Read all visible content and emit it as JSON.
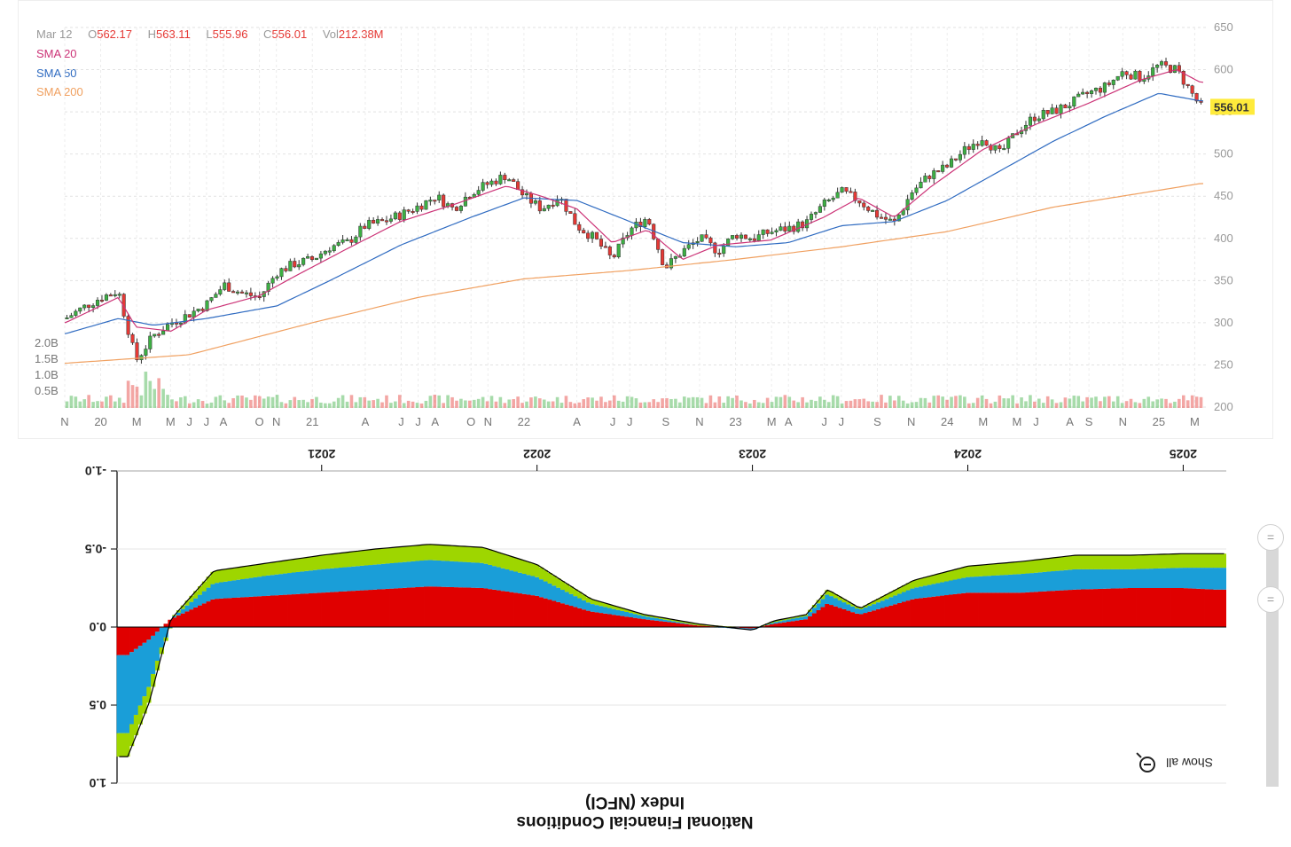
{
  "ohlc": {
    "date": "Mar 12",
    "open_label": "O",
    "open": "562.17",
    "high_label": "H",
    "high": "563.11",
    "low_label": "L",
    "low": "555.96",
    "close_label": "C",
    "close": "556.01",
    "vol_label": "Vol",
    "vol": "212.38M"
  },
  "legend": {
    "sma20": "SMA 20",
    "sma50": "SMA 50",
    "sma200": "SMA 200",
    "color_sma20": "#cc3377",
    "color_sma50": "#2f6bc1",
    "color_sma200": "#f0a060",
    "color_up": "#3cb043",
    "color_down": "#e53935"
  },
  "price_badge": "556.01",
  "nfci": {
    "title_line1": "National Financial Conditions",
    "title_line2": "Index (NFCI)",
    "show_all": "Show all",
    "colors": {
      "red": "#e00000",
      "blue": "#1a9ed8",
      "green": "#9ed600"
    }
  },
  "chart_data": [
    {
      "type": "candlestick",
      "title": "",
      "y_ticks": [
        "650",
        "600",
        "550",
        "500",
        "450",
        "400",
        "350",
        "300",
        "250",
        "200"
      ],
      "ylim": [
        200,
        650
      ],
      "volume_ticks": [
        "2.0B",
        "1.5B",
        "1.0B",
        "0.5B"
      ],
      "x_ticks": [
        "N",
        "20",
        "M",
        "M",
        "J",
        "J",
        "A",
        "O",
        "N",
        "21",
        "A",
        "J",
        "J",
        "A",
        "O",
        "N",
        "22",
        "A",
        "J",
        "J",
        "S",
        "N",
        "23",
        "M",
        "A",
        "J",
        "J",
        "S",
        "N",
        "24",
        "M",
        "M",
        "J",
        "A",
        "S",
        "N",
        "25",
        "M"
      ],
      "price_path": [
        [
          "2019-11",
          305
        ],
        [
          "2019-12",
          318
        ],
        [
          "2020-01",
          330
        ],
        [
          "2020-02",
          338
        ],
        [
          "2020-03",
          255
        ],
        [
          "2020-04",
          285
        ],
        [
          "2020-05",
          300
        ],
        [
          "2020-06",
          310
        ],
        [
          "2020-07",
          322
        ],
        [
          "2020-08",
          345
        ],
        [
          "2020-09",
          335
        ],
        [
          "2020-10",
          330
        ],
        [
          "2020-11",
          360
        ],
        [
          "2020-12",
          370
        ],
        [
          "2021-01",
          375
        ],
        [
          "2021-02",
          390
        ],
        [
          "2021-03",
          395
        ],
        [
          "2021-04",
          415
        ],
        [
          "2021-05",
          420
        ],
        [
          "2021-06",
          428
        ],
        [
          "2021-07",
          438
        ],
        [
          "2021-08",
          450
        ],
        [
          "2021-09",
          435
        ],
        [
          "2021-10",
          455
        ],
        [
          "2021-11",
          465
        ],
        [
          "2021-12",
          475
        ],
        [
          "2022-01",
          450
        ],
        [
          "2022-02",
          435
        ],
        [
          "2022-03",
          450
        ],
        [
          "2022-04",
          415
        ],
        [
          "2022-05",
          400
        ],
        [
          "2022-06",
          375
        ],
        [
          "2022-07",
          410
        ],
        [
          "2022-08",
          425
        ],
        [
          "2022-09",
          365
        ],
        [
          "2022-10",
          385
        ],
        [
          "2022-11",
          400
        ],
        [
          "2022-12",
          385
        ],
        [
          "2023-01",
          405
        ],
        [
          "2023-02",
          400
        ],
        [
          "2023-03",
          408
        ],
        [
          "2023-04",
          412
        ],
        [
          "2023-05",
          418
        ],
        [
          "2023-06",
          440
        ],
        [
          "2023-07",
          455
        ],
        [
          "2023-08",
          445
        ],
        [
          "2023-09",
          428
        ],
        [
          "2023-10",
          418
        ],
        [
          "2023-11",
          455
        ],
        [
          "2023-12",
          475
        ],
        [
          "2024-01",
          485
        ],
        [
          "2024-02",
          505
        ],
        [
          "2024-03",
          520
        ],
        [
          "2024-04",
          500
        ],
        [
          "2024-05",
          528
        ],
        [
          "2024-06",
          545
        ],
        [
          "2024-07",
          550
        ],
        [
          "2024-08",
          560
        ],
        [
          "2024-09",
          572
        ],
        [
          "2024-10",
          580
        ],
        [
          "2024-11",
          598
        ],
        [
          "2024-12",
          590
        ],
        [
          "2025-01",
          605
        ],
        [
          "2025-02",
          600
        ],
        [
          "2025-03-12",
          556
        ]
      ],
      "sma20_path": [
        [
          "2019-11",
          300
        ],
        [
          "2020-02",
          330
        ],
        [
          "2020-03",
          295
        ],
        [
          "2020-05",
          290
        ],
        [
          "2020-07",
          315
        ],
        [
          "2020-10",
          332
        ],
        [
          "2020-12",
          355
        ],
        [
          "2021-03",
          388
        ],
        [
          "2021-06",
          420
        ],
        [
          "2021-09",
          440
        ],
        [
          "2021-12",
          462
        ],
        [
          "2022-02",
          450
        ],
        [
          "2022-04",
          435
        ],
        [
          "2022-06",
          395
        ],
        [
          "2022-08",
          410
        ],
        [
          "2022-10",
          375
        ],
        [
          "2022-12",
          392
        ],
        [
          "2023-03",
          398
        ],
        [
          "2023-06",
          425
        ],
        [
          "2023-08",
          448
        ],
        [
          "2023-10",
          425
        ],
        [
          "2023-12",
          460
        ],
        [
          "2024-03",
          505
        ],
        [
          "2024-06",
          535
        ],
        [
          "2024-09",
          560
        ],
        [
          "2024-12",
          588
        ],
        [
          "2025-02",
          600
        ],
        [
          "2025-03-12",
          585
        ]
      ],
      "sma50_path": [
        [
          "2019-11",
          287
        ],
        [
          "2020-02",
          305
        ],
        [
          "2020-04",
          297
        ],
        [
          "2020-07",
          305
        ],
        [
          "2020-11",
          320
        ],
        [
          "2021-02",
          350
        ],
        [
          "2021-06",
          392
        ],
        [
          "2021-10",
          425
        ],
        [
          "2022-01",
          448
        ],
        [
          "2022-04",
          445
        ],
        [
          "2022-07",
          420
        ],
        [
          "2022-10",
          395
        ],
        [
          "2023-01",
          390
        ],
        [
          "2023-04",
          395
        ],
        [
          "2023-07",
          415
        ],
        [
          "2023-10",
          420
        ],
        [
          "2024-01",
          445
        ],
        [
          "2024-04",
          480
        ],
        [
          "2024-07",
          515
        ],
        [
          "2024-10",
          545
        ],
        [
          "2025-01",
          572
        ],
        [
          "2025-03-12",
          563
        ]
      ],
      "sma200_path": [
        [
          "2019-11",
          252
        ],
        [
          "2020-06",
          262
        ],
        [
          "2021-01",
          300
        ],
        [
          "2021-07",
          330
        ],
        [
          "2022-01",
          352
        ],
        [
          "2022-07",
          362
        ],
        [
          "2023-01",
          375
        ],
        [
          "2023-07",
          390
        ],
        [
          "2024-01",
          408
        ],
        [
          "2024-07",
          437
        ],
        [
          "2025-01",
          457
        ],
        [
          "2025-03-12",
          465
        ]
      ]
    },
    {
      "type": "area",
      "title": "National Financial Conditions Index (NFCI)",
      "note": "rendered rotated 180 degrees as in the original image",
      "y_ticks": [
        "-1.0",
        "-0.5",
        "0.0",
        "0.5",
        "1.0"
      ],
      "ylim": [
        -1.0,
        1.0
      ],
      "x_ticks": [
        "2021",
        "2022",
        "2023",
        "2024",
        "2025"
      ],
      "x_years": [
        2020.1,
        2020.2,
        2020.3,
        2020.5,
        2020.75,
        2021.0,
        2021.25,
        2021.5,
        2021.75,
        2022.0,
        2022.25,
        2022.5,
        2022.75,
        2023.0,
        2023.1,
        2023.25,
        2023.35,
        2023.5,
        2023.75,
        2024.0,
        2024.25,
        2024.5,
        2024.75,
        2025.0,
        2025.15
      ],
      "series": [
        {
          "name": "",
          "values": [
            0.18,
            0.08,
            -0.05,
            -0.18,
            -0.2,
            -0.22,
            -0.24,
            -0.26,
            -0.25,
            -0.2,
            -0.1,
            -0.05,
            -0.01,
            0.01,
            -0.02,
            -0.05,
            -0.15,
            -0.08,
            -0.18,
            -0.22,
            -0.22,
            -0.24,
            -0.25,
            -0.25,
            -0.24
          ]
        },
        {
          "name": "",
          "values": [
            0.5,
            0.3,
            0.0,
            -0.1,
            -0.13,
            -0.15,
            -0.16,
            -0.17,
            -0.16,
            -0.12,
            -0.05,
            -0.02,
            0.0,
            0.01,
            -0.01,
            -0.02,
            -0.06,
            -0.03,
            -0.07,
            -0.1,
            -0.12,
            -0.13,
            -0.12,
            -0.13,
            -0.14
          ]
        },
        {
          "name": "",
          "values": [
            0.15,
            0.1,
            0.0,
            -0.08,
            -0.08,
            -0.09,
            -0.1,
            -0.1,
            -0.1,
            -0.08,
            -0.03,
            -0.01,
            -0.01,
            0.0,
            -0.01,
            -0.01,
            -0.03,
            -0.01,
            -0.05,
            -0.07,
            -0.08,
            -0.09,
            -0.09,
            -0.09,
            -0.09
          ]
        }
      ]
    }
  ]
}
